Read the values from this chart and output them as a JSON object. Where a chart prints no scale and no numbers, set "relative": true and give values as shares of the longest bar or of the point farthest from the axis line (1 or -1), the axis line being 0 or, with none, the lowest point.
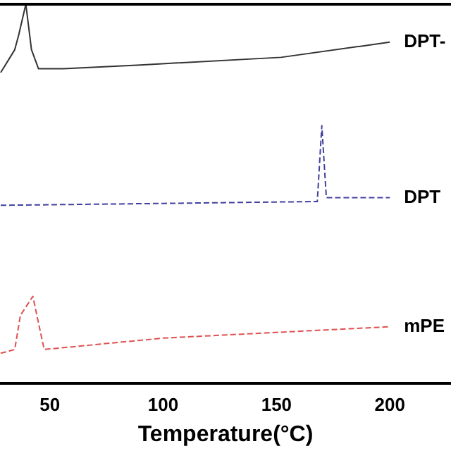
{
  "chart_data": {
    "type": "line",
    "xlabel": "Temperature(°C)",
    "relative": true,
    "xlim": [
      28,
      227
    ],
    "xticks": [
      50,
      100,
      150,
      200
    ],
    "tick_labels": "x",
    "grid": false,
    "legend": false,
    "marker": "none",
    "series": [
      {
        "name": "DPT-",
        "color": "#333333",
        "line_style": "solid",
        "x": [
          28.3,
          34.5,
          36.3,
          39.4,
          41.9,
          45,
          56,
          90,
          152,
          200
        ],
        "values": [
          0.82,
          0.88,
          0.92,
          1.0,
          0.88,
          0.83,
          0.83,
          0.84,
          0.86,
          0.9
        ]
      },
      {
        "name": "DPT",
        "color": "#4040a0",
        "line_style": "dashed",
        "x": [
          28.3,
          100,
          168,
          170,
          172,
          200
        ],
        "values": [
          0.47,
          0.475,
          0.48,
          0.68,
          0.49,
          0.49
        ]
      },
      {
        "name": "mPE",
        "color": "#e05050",
        "line_style": "dashed",
        "x": [
          28.3,
          34.5,
          37,
          42.5,
          45.7,
          47.5,
          100,
          200
        ],
        "values": [
          0.08,
          0.09,
          0.18,
          0.23,
          0.14,
          0.09,
          0.12,
          0.15
        ]
      }
    ]
  }
}
